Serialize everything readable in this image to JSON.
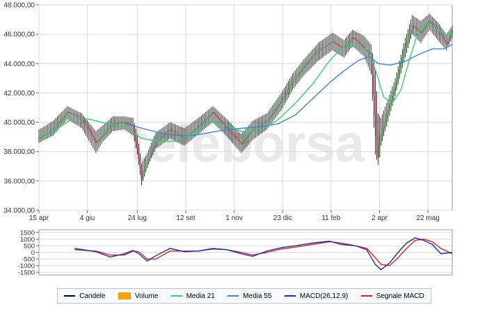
{
  "watermark": "teleborsa",
  "colors": {
    "candle_up": "#2d8a2d",
    "candle_down": "#b5283a",
    "wick": "#000000",
    "ma21": "#33d17a",
    "ma55": "#3a86d8",
    "macd": "#1a2ea8",
    "signal": "#e02020",
    "volume": "#f5a500",
    "grid": "#d9d9d9",
    "axis_text": "#333333"
  },
  "chart_data": [
    {
      "type": "line",
      "xlabel": "",
      "ylabel": "",
      "x_range": [
        0,
        290
      ],
      "ylim": [
        34000,
        48000
      ],
      "ytick_values": [
        34000,
        36000,
        38000,
        40000,
        42000,
        44000,
        46000,
        48000
      ],
      "ytick_labels": [
        "34.000,00",
        "36.000,00",
        "38.000,00",
        "40.000,00",
        "42.000,00",
        "44.000,00",
        "46.000,00",
        "48.000,00"
      ],
      "xtick_labels": [
        "15 apr",
        "4 giu",
        "24 lug",
        "12 set",
        "1 nov",
        "23 dic",
        "11 feb",
        "2 apr",
        "22 mag"
      ],
      "xtick_positions": [
        0,
        34,
        69,
        103,
        137,
        171,
        205,
        239,
        273
      ],
      "grid": true,
      "series": [
        {
          "name": "Candele",
          "kind": "candlestick",
          "x": [
            0,
            10,
            20,
            30,
            40,
            45,
            52,
            60,
            66,
            69,
            72,
            76,
            82,
            92,
            102,
            112,
            122,
            132,
            142,
            150,
            160,
            170,
            178,
            186,
            196,
            206,
            214,
            220,
            228,
            233,
            236,
            238,
            240,
            244,
            250,
            256,
            262,
            268,
            274,
            280,
            286,
            290
          ],
          "close": [
            38900,
            39500,
            40700,
            40300,
            38600,
            39100,
            39900,
            40000,
            39800,
            38200,
            36100,
            37300,
            38600,
            39500,
            38900,
            39700,
            40700,
            39600,
            38500,
            39500,
            40100,
            41400,
            42800,
            43800,
            44900,
            45500,
            45000,
            45800,
            45100,
            44600,
            40500,
            37600,
            39200,
            40600,
            42400,
            44800,
            46600,
            46100,
            46900,
            46300,
            45300,
            46300
          ],
          "high": [
            39500,
            40100,
            41100,
            40600,
            39400,
            39800,
            40400,
            40400,
            40300,
            39200,
            37200,
            37900,
            39300,
            40000,
            39600,
            40300,
            41100,
            40200,
            39200,
            40100,
            40600,
            42000,
            43300,
            44300,
            45400,
            46100,
            45600,
            46300,
            45900,
            45300,
            43600,
            40600,
            40300,
            41300,
            43000,
            45400,
            47300,
            46900,
            47400,
            46800,
            46000,
            46600
          ],
          "low": [
            38600,
            39100,
            40200,
            39600,
            37900,
            38700,
            39400,
            39500,
            39100,
            37800,
            35700,
            36900,
            38200,
            38900,
            38400,
            39200,
            40000,
            39000,
            37900,
            38800,
            39500,
            40800,
            42200,
            43200,
            44200,
            44900,
            44400,
            45200,
            44500,
            43300,
            37800,
            37100,
            38400,
            39700,
            41800,
            44100,
            46000,
            45400,
            46300,
            45600,
            44900,
            45700
          ]
        },
        {
          "name": "Volume",
          "kind": "bar",
          "values": []
        },
        {
          "name": "Media 21",
          "kind": "line",
          "x": [
            0,
            12,
            24,
            36,
            48,
            60,
            72,
            84,
            96,
            108,
            120,
            132,
            144,
            156,
            168,
            180,
            192,
            204,
            212,
            222,
            230,
            236,
            242,
            248,
            254,
            260,
            266,
            272,
            278,
            284,
            290
          ],
          "values": [
            39000,
            39500,
            40300,
            40200,
            39900,
            39700,
            38900,
            38700,
            38700,
            39200,
            40000,
            39800,
            39300,
            39400,
            40200,
            41300,
            42600,
            44200,
            45000,
            45200,
            45000,
            43600,
            41700,
            41300,
            42200,
            44300,
            46100,
            46700,
            46500,
            46000,
            46000
          ]
        },
        {
          "name": "Media 55",
          "kind": "line",
          "x": [
            60,
            72,
            84,
            96,
            108,
            120,
            132,
            144,
            156,
            168,
            180,
            192,
            204,
            214,
            224,
            232,
            238,
            246,
            256,
            266,
            276,
            284,
            290
          ],
          "values": [
            39900,
            39600,
            39300,
            39100,
            39100,
            39300,
            39500,
            39600,
            39700,
            39900,
            40500,
            41600,
            42700,
            43500,
            44200,
            44500,
            44000,
            43900,
            44100,
            44600,
            45000,
            45000,
            45300
          ]
        }
      ]
    },
    {
      "type": "line",
      "xlabel": "",
      "ylabel": "",
      "x_range": [
        0,
        290
      ],
      "ylim": [
        -1700,
        1700
      ],
      "ytick_values": [
        1500,
        1000,
        500,
        0,
        -500,
        -1000,
        -1500
      ],
      "ytick_labels": [
        "1500",
        "1000",
        "500",
        "0",
        "-500",
        "-1000",
        "-1500"
      ],
      "grid": true,
      "series": [
        {
          "name": "MACD(26,12,9)",
          "x": [
            25,
            40,
            50,
            60,
            66,
            70,
            76,
            82,
            92,
            102,
            112,
            122,
            132,
            142,
            150,
            160,
            170,
            180,
            192,
            204,
            212,
            222,
            230,
            236,
            240,
            246,
            252,
            258,
            264,
            270,
            276,
            282,
            290
          ],
          "values": [
            300,
            50,
            -350,
            -100,
            150,
            -100,
            -650,
            -250,
            300,
            50,
            100,
            300,
            200,
            -100,
            -300,
            100,
            350,
            500,
            700,
            850,
            600,
            500,
            200,
            -900,
            -1300,
            -800,
            0,
            700,
            1100,
            900,
            600,
            -100,
            0
          ]
        },
        {
          "name": "Segnale MACD",
          "x": [
            25,
            40,
            50,
            60,
            66,
            70,
            76,
            82,
            92,
            102,
            112,
            122,
            132,
            142,
            150,
            160,
            170,
            180,
            192,
            204,
            212,
            222,
            230,
            236,
            240,
            246,
            252,
            258,
            264,
            270,
            276,
            282,
            290
          ],
          "values": [
            200,
            100,
            -200,
            -200,
            100,
            50,
            -500,
            -500,
            100,
            100,
            100,
            250,
            200,
            0,
            -200,
            0,
            250,
            400,
            600,
            800,
            700,
            500,
            300,
            -400,
            -900,
            -1000,
            -400,
            300,
            900,
            1000,
            800,
            300,
            -100
          ]
        }
      ]
    }
  ],
  "legend": [
    {
      "label": "Candele",
      "style": "line",
      "color": "#000000"
    },
    {
      "label": "Volume",
      "style": "box",
      "color": "#f5a500"
    },
    {
      "label": "Media 21",
      "style": "line",
      "color": "#33d17a"
    },
    {
      "label": "Media 55",
      "style": "line",
      "color": "#3a86d8"
    },
    {
      "label": "MACD(26,12,9)",
      "style": "line",
      "color": "#1a2ea8"
    },
    {
      "label": "Segnale MACD",
      "style": "line",
      "color": "#e02020"
    }
  ]
}
